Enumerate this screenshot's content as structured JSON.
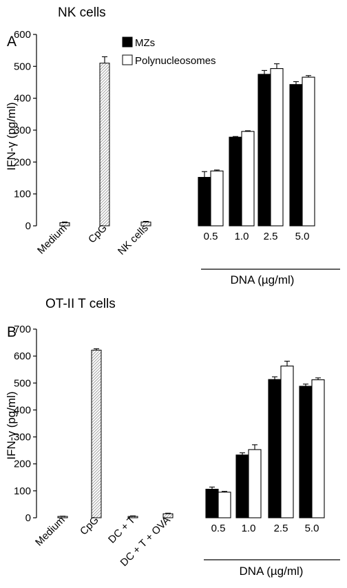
{
  "colors": {
    "mzs": "#000000",
    "polynucleosomes": "#ffffff",
    "control_hatch": "#9a9a9a",
    "axis": "#000000"
  },
  "legend": [
    "MZs",
    "Polynucleosomes"
  ],
  "chart_data": [
    {
      "type": "bar",
      "panel_label": "A",
      "title": "NK cells",
      "ylabel": "IFN-γ (pg/ml)",
      "ylim": [
        0,
        600
      ],
      "yticks": [
        0,
        100,
        200,
        300,
        400,
        500,
        600
      ],
      "legend_placement": "top-center",
      "controls": {
        "categories": [
          "Medium",
          "CpG",
          "NK cells"
        ],
        "values": [
          10,
          510,
          12
        ],
        "errors": [
          2,
          20,
          2
        ],
        "pattern": "hatched"
      },
      "group_label": "DNA (µg/ml)",
      "categories": [
        "0.5",
        "1.0",
        "2.5",
        "5.0"
      ],
      "series": [
        {
          "name": "MZs",
          "values": [
            152,
            278,
            475,
            443
          ],
          "errors": [
            18,
            2,
            12,
            9
          ]
        },
        {
          "name": "Polynucleosomes",
          "values": [
            172,
            296,
            493,
            466
          ],
          "errors": [
            3,
            2,
            15,
            5
          ]
        }
      ]
    },
    {
      "type": "bar",
      "panel_label": "B",
      "title": "OT-II T cells",
      "ylabel": "IFN-γ (pg/ml)",
      "ylim": [
        0,
        700
      ],
      "yticks": [
        0,
        100,
        200,
        300,
        400,
        500,
        600,
        700
      ],
      "controls": {
        "categories": [
          "Medium",
          "CpG",
          "DC + T",
          "DC + T + OVA"
        ],
        "values": [
          5,
          622,
          5,
          15
        ],
        "errors": [
          1,
          5,
          2,
          2
        ],
        "pattern": "hatched"
      },
      "group_label": "DNA (µg/ml)",
      "categories": [
        "0.5",
        "1.0",
        "2.5",
        "5.0"
      ],
      "series": [
        {
          "name": "MZs",
          "values": [
            106,
            233,
            513,
            488
          ],
          "errors": [
            8,
            8,
            10,
            8
          ]
        },
        {
          "name": "Polynucleosomes",
          "values": [
            95,
            253,
            563,
            512
          ],
          "errors": [
            3,
            18,
            18,
            7
          ]
        }
      ]
    }
  ]
}
